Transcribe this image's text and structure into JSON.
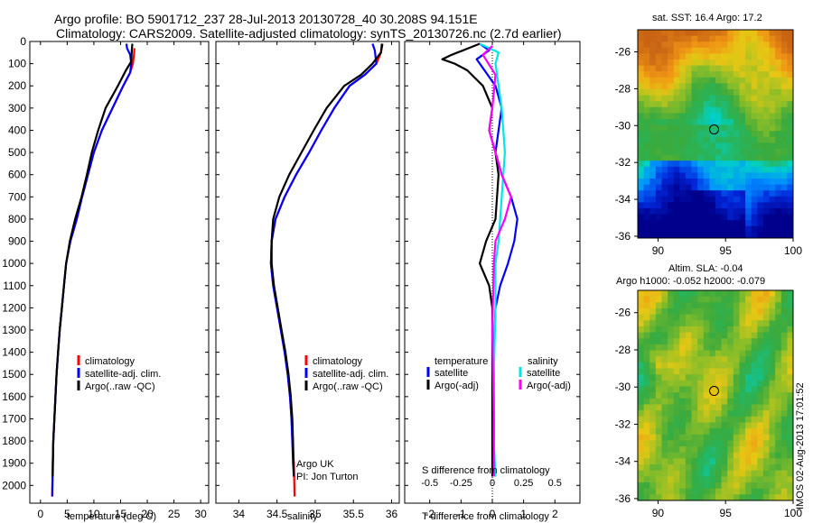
{
  "header": {
    "title_line1": "Argo profile: BO 5901712_237 28-Jul-2013 20130728_40 30.208S 94.151E",
    "title_line2": "Climatology: CARS2009. Satellite-adjusted climatology: synTS_20130726.nc (2.7d earlier)"
  },
  "legend_profiles": [
    {
      "label": "climatology",
      "color": "#ff0000"
    },
    {
      "label": "satellite-adj. clim.",
      "color": "#0000ff"
    },
    {
      "label": "Argo(..raw -QC)",
      "color": "#000000"
    }
  ],
  "legend_diff": {
    "temperature_title": "temperature",
    "salinity_title": "salinity",
    "entries": [
      {
        "label": "satellite",
        "color": "#0000ff"
      },
      {
        "label": "Argo(-adj)",
        "color": "#000000"
      },
      {
        "label": "satellite",
        "color": "#00e6e6"
      },
      {
        "label": "Argo(-adj)",
        "color": "#ff00ff"
      }
    ]
  },
  "annotation": {
    "line1": "Argo UK",
    "line2": "PI: Jon Turton"
  },
  "stamp": "IMOS 02-Aug-2013 17:01:52",
  "chart_data": [
    {
      "type": "line",
      "xlabel": "temperature (deg C)",
      "ylabel": "",
      "xlim": [
        -2,
        31.5
      ],
      "ylim": [
        2080,
        0
      ],
      "xticks": [
        0,
        5,
        10,
        15,
        20,
        25,
        30
      ],
      "yticks": [
        0,
        100,
        200,
        300,
        400,
        500,
        600,
        700,
        800,
        900,
        1000,
        1100,
        1200,
        1300,
        1400,
        1500,
        1600,
        1700,
        1800,
        1900,
        2000
      ],
      "legend": "center-right",
      "series": [
        {
          "name": "climatology",
          "color": "#ff0000",
          "x": [
            17.6,
            17.5,
            17.3,
            16.8,
            15.5,
            13.5,
            11.5,
            10.0,
            8.9,
            7.8,
            6.8,
            5.6,
            4.8,
            4.4,
            4.0,
            3.6,
            3.3,
            3.0,
            2.8,
            2.6,
            2.4,
            2.3,
            2.2
          ],
          "y": [
            30,
            60,
            100,
            140,
            200,
            300,
            400,
            500,
            600,
            700,
            800,
            900,
            1000,
            1100,
            1200,
            1300,
            1400,
            1500,
            1600,
            1700,
            1800,
            1900,
            2050
          ]
        },
        {
          "name": "satellite-adj. clim.",
          "color": "#0000ff",
          "x": [
            16.1,
            16.2,
            16.8,
            17.0,
            16.8,
            15.5,
            13.5,
            11.5,
            10.0,
            8.9,
            7.8,
            6.8,
            5.6,
            4.8,
            4.4,
            4.0,
            3.6,
            3.3,
            3.0,
            2.8,
            2.6,
            2.4,
            2.3,
            2.2
          ],
          "y": [
            10,
            30,
            60,
            100,
            140,
            200,
            300,
            400,
            500,
            600,
            700,
            800,
            900,
            1000,
            1100,
            1200,
            1300,
            1400,
            1500,
            1600,
            1700,
            1800,
            1900,
            2050
          ]
        },
        {
          "name": "Argo(..raw -QC)",
          "color": "#000000",
          "x": [
            17.2,
            17.1,
            17.0,
            16.0,
            14.5,
            12.2,
            10.8,
            9.6,
            8.7,
            7.7,
            6.5,
            5.5,
            4.8,
            4.4,
            4.0,
            3.6,
            3.3,
            3.0,
            2.8,
            2.6,
            2.4,
            2.3
          ],
          "y": [
            10,
            40,
            90,
            130,
            200,
            300,
            400,
            500,
            600,
            700,
            800,
            900,
            1000,
            1100,
            1200,
            1300,
            1400,
            1500,
            1600,
            1700,
            1800,
            1960
          ]
        }
      ]
    },
    {
      "type": "line",
      "xlabel": "salinity",
      "ylabel": "",
      "xlim": [
        33.7,
        36.1
      ],
      "ylim": [
        2080,
        0
      ],
      "xticks": [
        34,
        34.5,
        35,
        35.5,
        36
      ],
      "legend": "center-right",
      "series": [
        {
          "name": "climatology",
          "color": "#ff0000",
          "x": [
            35.87,
            35.86,
            35.8,
            35.65,
            35.45,
            35.25,
            35.08,
            34.92,
            34.75,
            34.6,
            34.48,
            34.43,
            34.42,
            34.45,
            34.5,
            34.55,
            34.6,
            34.64,
            34.67,
            34.69,
            34.7,
            34.72,
            34.73
          ],
          "y": [
            10,
            50,
            100,
            150,
            200,
            300,
            400,
            500,
            600,
            700,
            800,
            900,
            1000,
            1100,
            1200,
            1300,
            1400,
            1500,
            1600,
            1700,
            1800,
            1900,
            2050
          ]
        },
        {
          "name": "satellite-adj. clim.",
          "color": "#0000ff",
          "x": [
            35.75,
            35.78,
            35.8,
            35.65,
            35.45,
            35.25,
            35.08,
            34.92,
            34.75,
            34.6,
            34.48,
            34.43,
            34.42,
            34.45,
            34.5,
            34.55,
            34.6,
            34.64,
            34.67,
            34.69,
            34.7,
            34.71,
            34.72
          ],
          "y": [
            10,
            40,
            100,
            150,
            200,
            300,
            400,
            500,
            600,
            700,
            800,
            900,
            1000,
            1100,
            1200,
            1300,
            1400,
            1500,
            1600,
            1700,
            1800,
            1900,
            1960
          ]
        },
        {
          "name": "Argo(..raw -QC)",
          "color": "#000000",
          "x": [
            35.88,
            35.86,
            35.75,
            35.6,
            35.38,
            35.15,
            34.98,
            34.82,
            34.66,
            34.53,
            34.45,
            34.43,
            34.43,
            34.46,
            34.51,
            34.56,
            34.61,
            34.65,
            34.68,
            34.7,
            34.71,
            34.72
          ],
          "y": [
            10,
            50,
            100,
            150,
            200,
            300,
            400,
            500,
            600,
            700,
            800,
            900,
            1000,
            1100,
            1200,
            1300,
            1400,
            1500,
            1600,
            1700,
            1800,
            1960
          ]
        }
      ]
    },
    {
      "type": "line",
      "xlabel": "T difference from climatology",
      "ylabel": "",
      "xlim": [
        -2.8,
        2.8
      ],
      "ylim": [
        2080,
        0
      ],
      "xticks": [
        -2,
        -1,
        0,
        1,
        2
      ],
      "xlabel_top": "S difference from climatology",
      "xticks_top": [
        -0.5,
        -0.25,
        0,
        0.25,
        0.5
      ],
      "legend": "center",
      "series": [
        {
          "name": "temperature satellite",
          "color": "#0000ff",
          "x": [
            -0.4,
            -0.1,
            -0.5,
            -0.3,
            0.1,
            0.3,
            0.2,
            0.1,
            0.3,
            0.6,
            0.8,
            0.7,
            0.5,
            0.25,
            0.1,
            0.05,
            0.05,
            0.05,
            0.05
          ],
          "y": [
            10,
            40,
            80,
            120,
            200,
            300,
            400,
            500,
            600,
            700,
            800,
            900,
            1000,
            1100,
            1200,
            1400,
            1600,
            1800,
            1960
          ]
        },
        {
          "name": "temperature Argo(-adj)",
          "color": "#000000",
          "x": [
            -0.4,
            -1.3,
            -1.6,
            -1.2,
            -0.8,
            -0.3,
            0.0,
            -0.1,
            0.1,
            0.2,
            0.1,
            -0.2,
            -0.4,
            -0.1,
            0.0,
            0.0,
            0.0,
            0.0,
            0.0,
            0.0
          ],
          "y": [
            10,
            60,
            80,
            100,
            130,
            200,
            300,
            400,
            500,
            600,
            800,
            900,
            1000,
            1100,
            1200,
            1400,
            1600,
            1800,
            1900,
            1960
          ]
        },
        {
          "name": "salinity satellite",
          "color": "#00e6e6",
          "x": [
            -0.4,
            0.2,
            0.1,
            0.2,
            0.3,
            0.4,
            0.3,
            0.25,
            0.2,
            0.1,
            0.1,
            0.05,
            0.05,
            0.1
          ],
          "y": [
            10,
            50,
            100,
            200,
            300,
            500,
            700,
            800,
            900,
            1000,
            1200,
            1500,
            1800,
            1960
          ]
        },
        {
          "name": "salinity Argo(-adj)",
          "color": "#ff00ff",
          "x": [
            0.0,
            -0.3,
            0.1,
            0.0,
            -0.1,
            0.1,
            0.3,
            0.6,
            0.4,
            0.1,
            0.05,
            0.0,
            0.05,
            0.05
          ],
          "y": [
            20,
            60,
            150,
            300,
            400,
            500,
            600,
            700,
            800,
            900,
            1000,
            1300,
            1700,
            1960
          ]
        }
      ]
    },
    {
      "type": "heatmap",
      "title": "sat. SST: 16.4  Argo: 17.2",
      "xlim": [
        88.5,
        100
      ],
      "ylim": [
        -36.1,
        -24.8
      ],
      "xticks": [
        90,
        95,
        100
      ],
      "yticks": [
        -26,
        -28,
        -30,
        -32,
        -34,
        -36
      ],
      "marker": {
        "x": 94.151,
        "y": -30.208
      }
    },
    {
      "type": "heatmap",
      "title_line1": "Altim. SLA: -0.04",
      "title_line2": "Argo h1000: -0.052 h2000: -0.079",
      "xlim": [
        88.5,
        100
      ],
      "ylim": [
        -36.1,
        -24.8
      ],
      "xticks": [
        90,
        95,
        100
      ],
      "yticks": [
        -26,
        -28,
        -30,
        -32,
        -34,
        -36
      ],
      "marker": {
        "x": 94.151,
        "y": -30.208
      }
    }
  ]
}
